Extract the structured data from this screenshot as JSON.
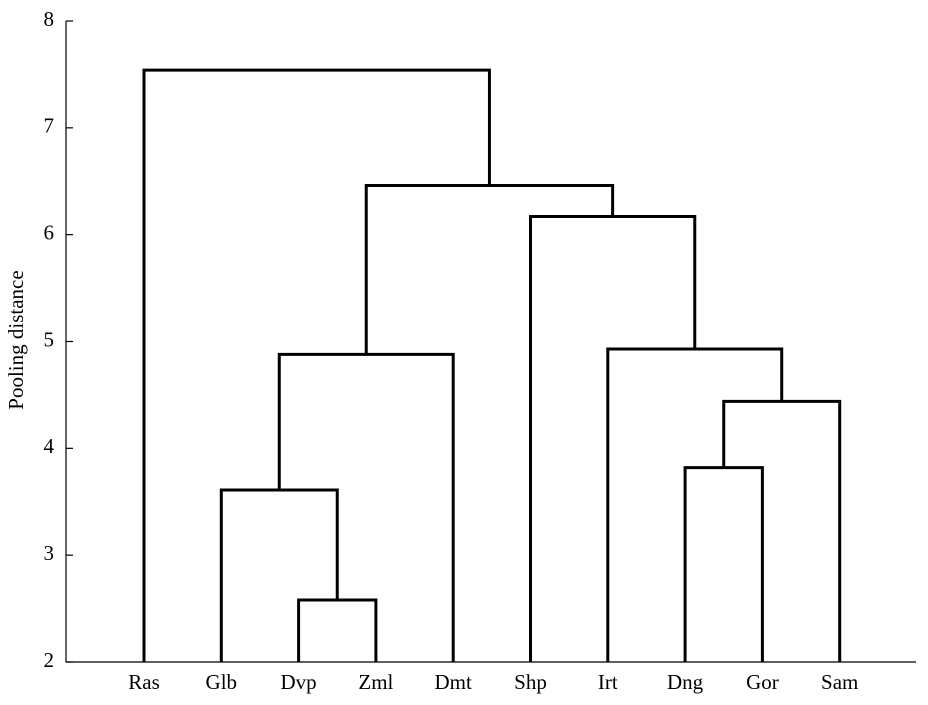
{
  "chart_data": {
    "type": "dendrogram",
    "y_label": "Pooling distance",
    "categories": [
      "Ras",
      "Glb",
      "Dvp",
      "Zml",
      "Dmt",
      "Shp",
      "Irt",
      "Dng",
      "Gor",
      "Sam"
    ],
    "merges": [
      {
        "children": [
          2,
          3
        ],
        "height": 2.58
      },
      {
        "children": [
          1,
          10
        ],
        "height": 3.61
      },
      {
        "children": [
          11,
          4
        ],
        "height": 4.88
      },
      {
        "children": [
          7,
          8
        ],
        "height": 3.82
      },
      {
        "children": [
          13,
          9
        ],
        "height": 4.44
      },
      {
        "children": [
          6,
          14
        ],
        "height": 4.93
      },
      {
        "children": [
          5,
          15
        ],
        "height": 6.17
      },
      {
        "children": [
          12,
          16
        ],
        "height": 6.46
      },
      {
        "children": [
          0,
          17
        ],
        "height": 7.54
      }
    ],
    "ylim": [
      2,
      8
    ],
    "yticks": [
      2,
      3,
      4,
      5,
      6,
      7,
      8
    ],
    "color": "#000000"
  }
}
